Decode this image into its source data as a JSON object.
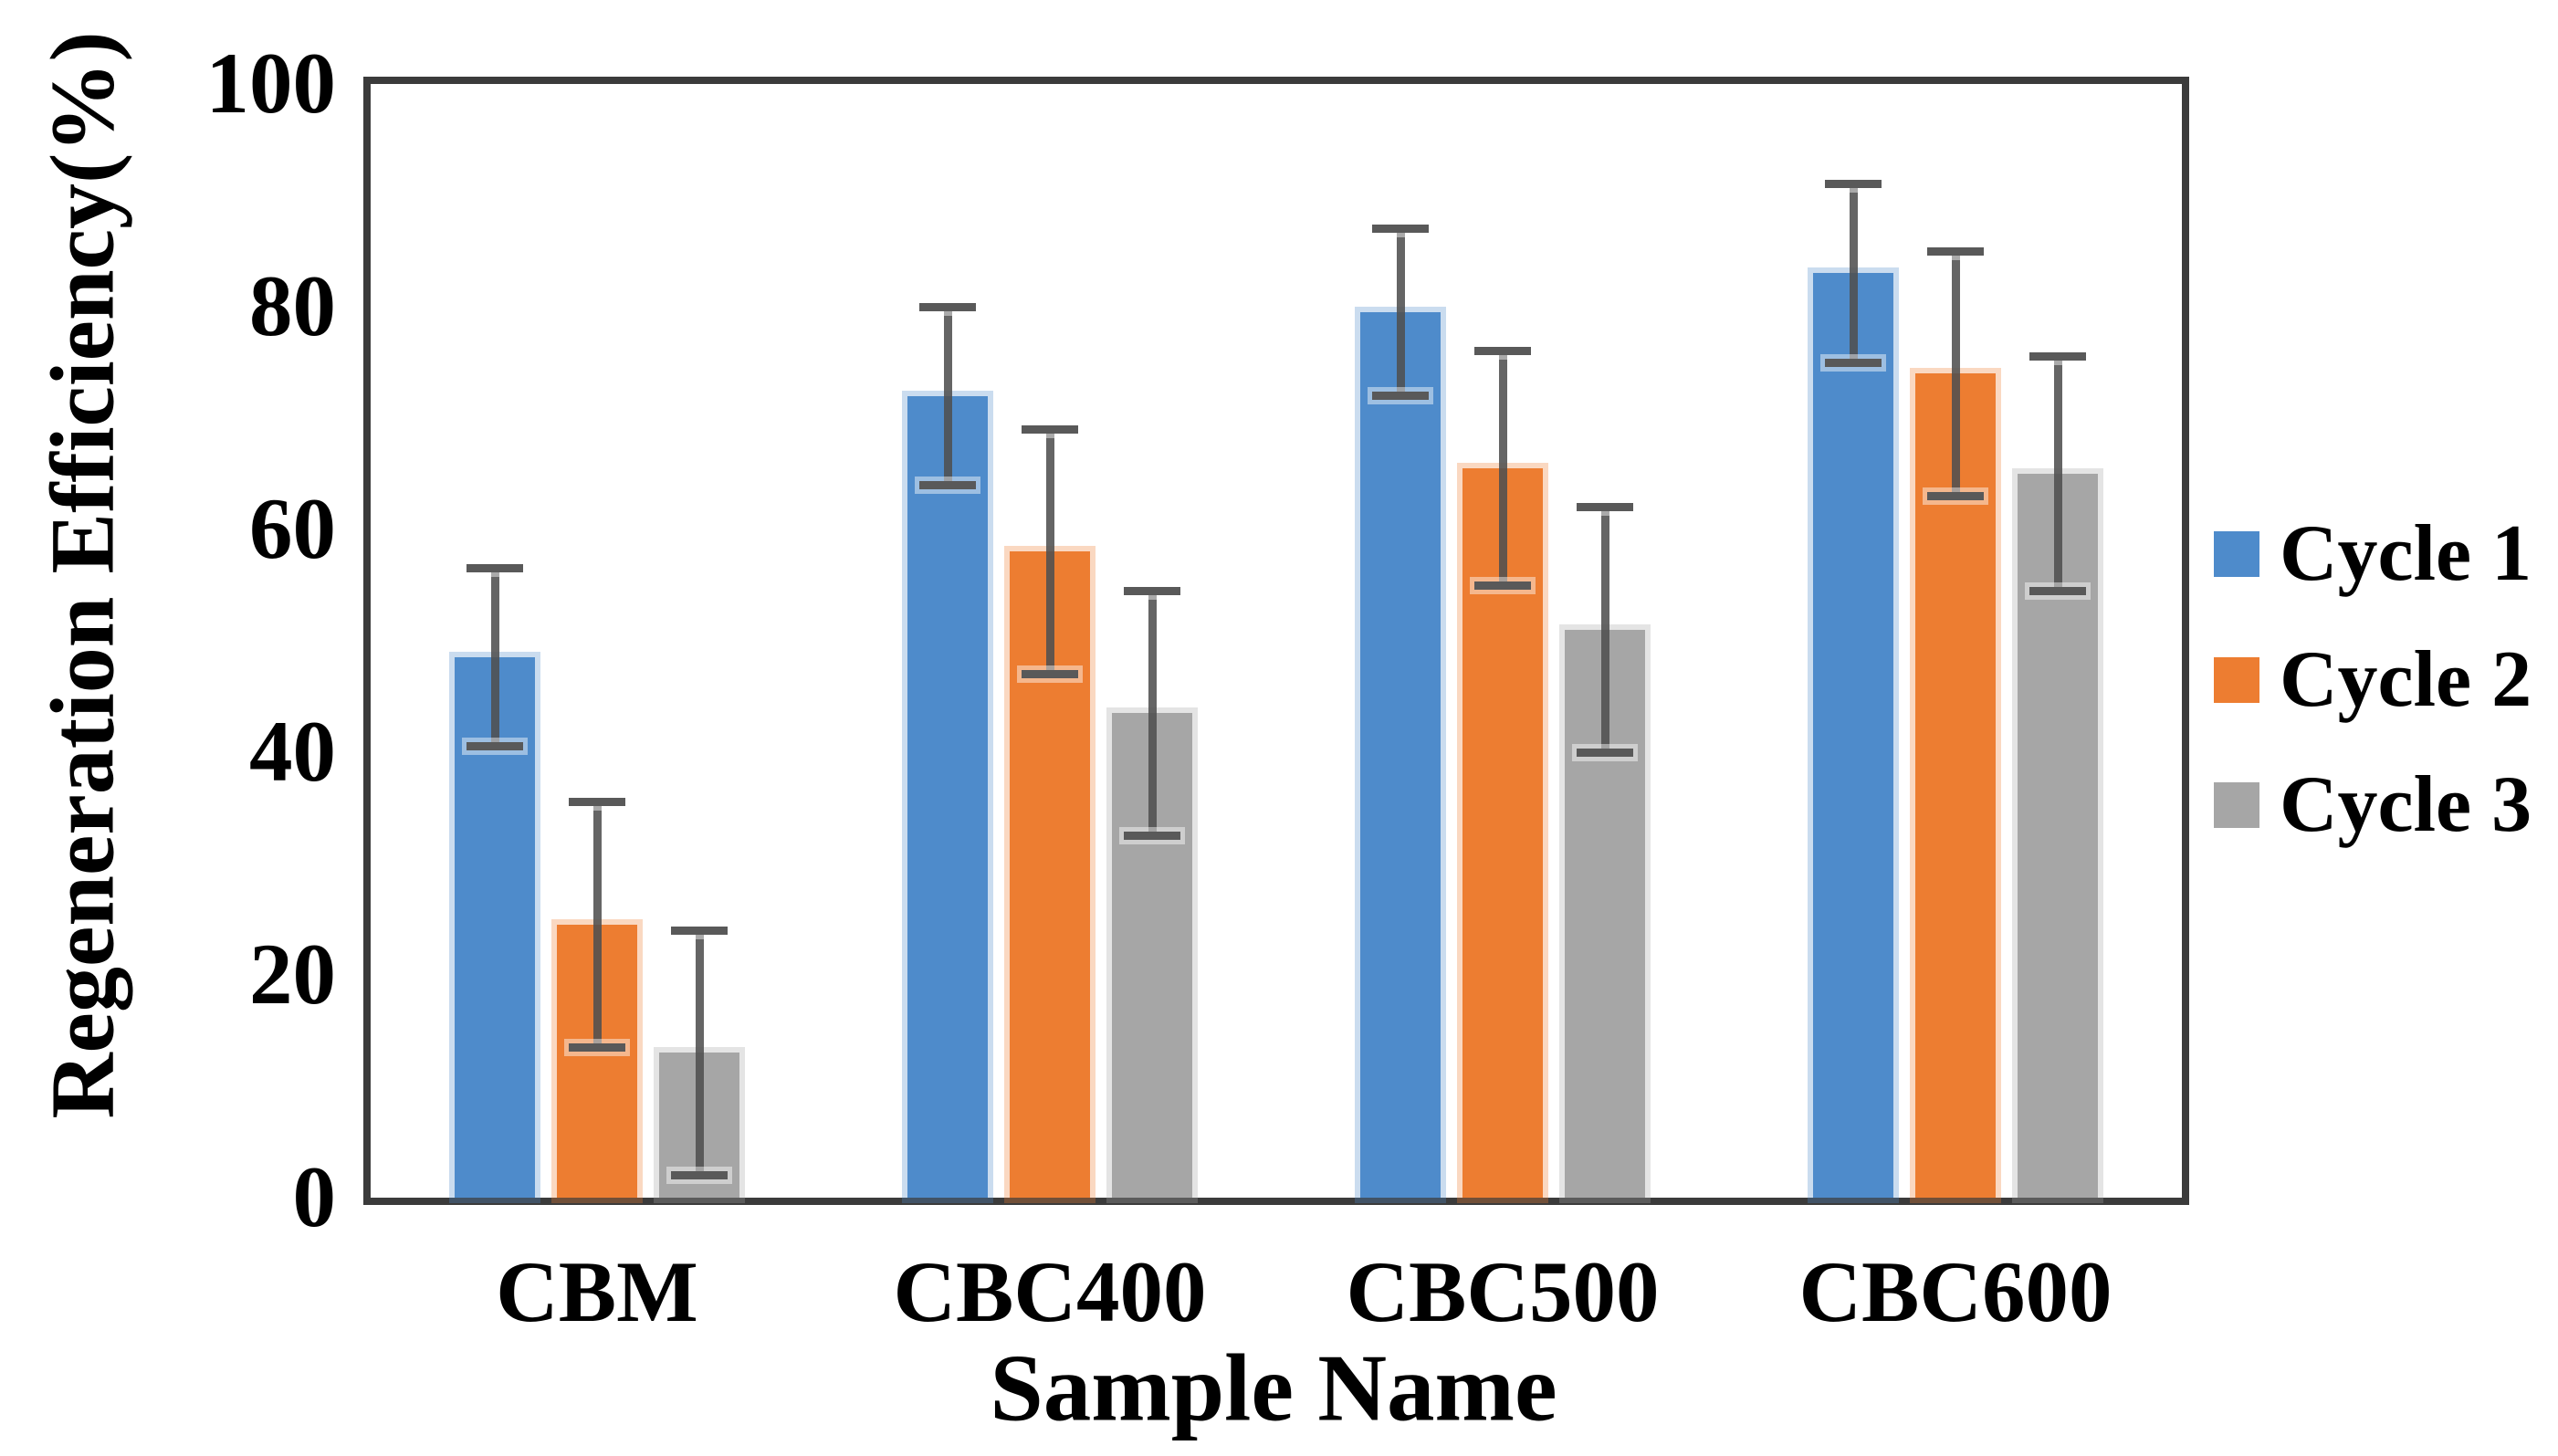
{
  "figure": {
    "y_axis_title": "Regeneration Efficiency(%)",
    "x_axis_title": "Sample Name"
  },
  "chart_data": {
    "type": "bar",
    "title": "",
    "categories": [
      "CBM",
      "CBC400",
      "CBC500",
      "CBC600"
    ],
    "series": [
      {
        "name": "Cycle 1",
        "color": "#4E8BCB",
        "values": [
          48.5,
          72,
          79.5,
          83
        ],
        "errors": [
          8,
          8,
          7.5,
          8
        ]
      },
      {
        "name": "Cycle 2",
        "color": "#ED7D31",
        "values": [
          24.5,
          58,
          65.5,
          74
        ],
        "errors": [
          11,
          11,
          10.5,
          11
        ]
      },
      {
        "name": "Cycle 3",
        "color": "#A6A6A6",
        "values": [
          13,
          43.5,
          51,
          65
        ],
        "errors": [
          11,
          11,
          11,
          10.5
        ]
      }
    ],
    "xlabel": "Sample Name",
    "ylabel": "Regeneration Efficiency(%)",
    "ylim": [
      0,
      100
    ],
    "yticks": [
      0,
      20,
      40,
      60,
      80,
      100
    ],
    "grid": false,
    "error_bar_color": "#595959",
    "legend_position": "right-outside",
    "legend_entries": [
      "Cycle 1",
      "Cycle 2",
      "Cycle 3"
    ]
  }
}
